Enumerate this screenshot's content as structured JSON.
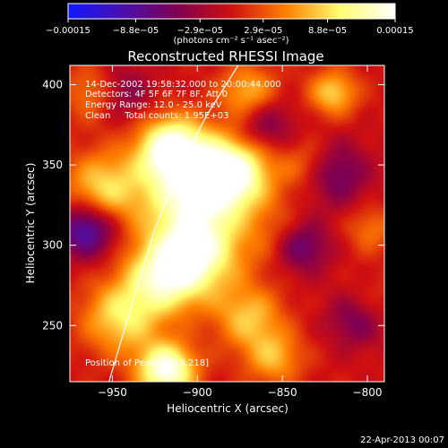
{
  "chart_data": {
    "type": "heatmap",
    "title": "Reconstructed RHESSI Image",
    "xlabel": "Heliocentric X (arcsec)",
    "ylabel": "Heliocentric Y (arcsec)",
    "xlim": [
      -975,
      -790
    ],
    "ylim": [
      215,
      412
    ],
    "x_ticks": [
      {
        "value": -950,
        "label": "−950"
      },
      {
        "value": -900,
        "label": "−900"
      },
      {
        "value": -850,
        "label": "−850"
      },
      {
        "value": -800,
        "label": "−800"
      }
    ],
    "y_ticks": [
      {
        "value": 250,
        "label": "250"
      },
      {
        "value": 300,
        "label": "300"
      },
      {
        "value": 350,
        "label": "350"
      },
      {
        "value": 400,
        "label": "400"
      }
    ],
    "colorbar": {
      "range": [
        -0.00015,
        0.00015
      ],
      "ticks": [
        {
          "value": -0.00015,
          "label": "−0.00015"
        },
        {
          "value": -8.8e-05,
          "label": "−8.8e−05"
        },
        {
          "value": -2.9e-05,
          "label": "−2.9e−05"
        },
        {
          "value": 2.9e-05,
          "label": "2.9e−05"
        },
        {
          "value": 8.8e-05,
          "label": "8.8e−05"
        },
        {
          "value": 0.00015,
          "label": "0.00015"
        }
      ],
      "unit_label": "(photons cm⁻² s⁻¹ asec⁻²)",
      "colors": [
        "#1018ff",
        "#4a10b0",
        "#800050",
        "#d01010",
        "#ff8000",
        "#ffff70",
        "#ffffff"
      ]
    },
    "annotations": [
      "14-Dec-2002 19:58:32.000 to 20:00:44.000",
      "Detectors: 4F 5F 6F 7F 8F, Att 0",
      "Energy Range: 12.0 - 25.0 keV",
      "Clean     Total counts: 1.95E+03"
    ],
    "peak_label": "Position of Peak: [-918,218]",
    "limb_curve": [
      [
        -952,
        215
      ],
      [
        -938,
        265
      ],
      [
        -925,
        310
      ],
      [
        -912,
        345
      ],
      [
        -895,
        380
      ],
      [
        -876,
        412
      ]
    ],
    "blobs": [
      {
        "x": -915,
        "y": 360,
        "v": 1.0,
        "s": 14
      },
      {
        "x": -880,
        "y": 345,
        "v": 1.0,
        "s": 16
      },
      {
        "x": -905,
        "y": 330,
        "v": 0.7,
        "s": 20
      },
      {
        "x": -900,
        "y": 295,
        "v": 0.8,
        "s": 18
      },
      {
        "x": -920,
        "y": 280,
        "v": 0.7,
        "s": 16
      },
      {
        "x": -955,
        "y": 335,
        "v": 0.6,
        "s": 16
      },
      {
        "x": -945,
        "y": 255,
        "v": 0.6,
        "s": 16
      },
      {
        "x": -918,
        "y": 222,
        "v": 1.0,
        "s": 12
      },
      {
        "x": -870,
        "y": 255,
        "v": 0.5,
        "s": 14
      },
      {
        "x": -850,
        "y": 305,
        "v": 0.35,
        "s": 14
      },
      {
        "x": -870,
        "y": 395,
        "v": 0.5,
        "s": 12
      },
      {
        "x": -960,
        "y": 395,
        "v": 0.4,
        "s": 12
      },
      {
        "x": -855,
        "y": 230,
        "v": 0.45,
        "s": 12
      },
      {
        "x": -835,
        "y": 350,
        "v": 0.35,
        "s": 12
      },
      {
        "x": -798,
        "y": 310,
        "v": 0.3,
        "s": 10
      },
      {
        "x": -800,
        "y": 260,
        "v": 0.35,
        "s": 12
      },
      {
        "x": -820,
        "y": 395,
        "v": 0.55,
        "s": 10
      },
      {
        "x": -965,
        "y": 310,
        "v": -0.75,
        "s": 12
      },
      {
        "x": -840,
        "y": 300,
        "v": -0.65,
        "s": 12
      },
      {
        "x": -805,
        "y": 255,
        "v": -0.6,
        "s": 12
      },
      {
        "x": -820,
        "y": 345,
        "v": -0.5,
        "s": 14
      },
      {
        "x": -945,
        "y": 395,
        "v": -0.4,
        "s": 12
      },
      {
        "x": -860,
        "y": 375,
        "v": -0.4,
        "s": 12
      }
    ]
  },
  "footer": {
    "timestamp": "22-Apr-2013 00:07"
  }
}
